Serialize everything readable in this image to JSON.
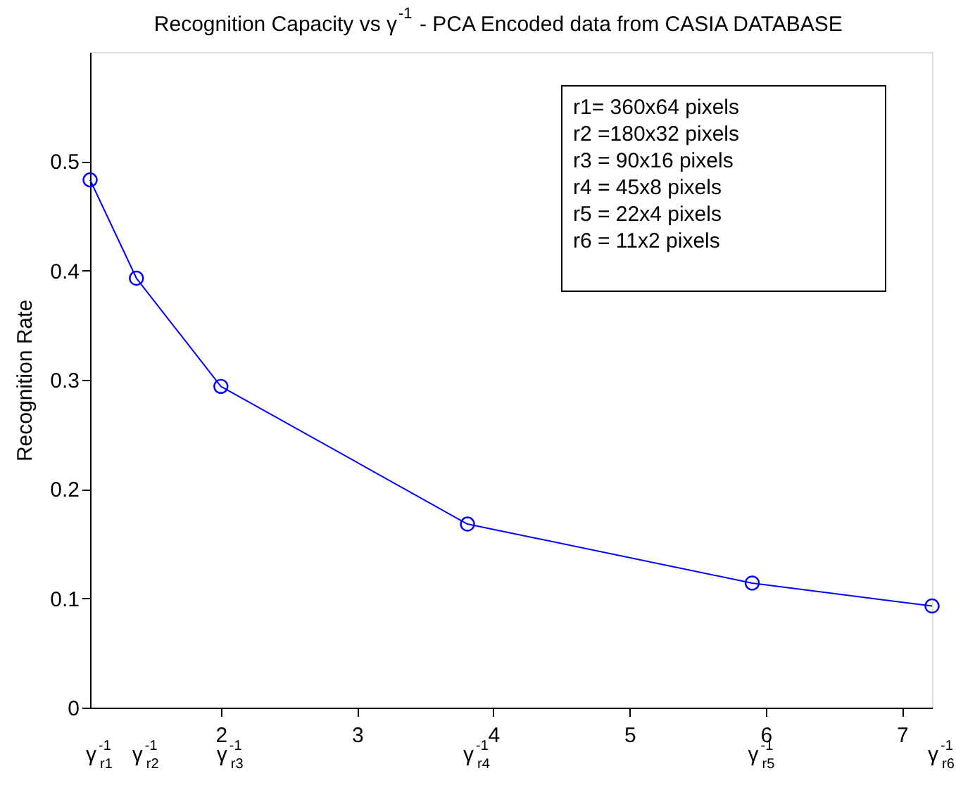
{
  "chart_data": {
    "type": "line",
    "title": "Recognition Capacity vs γ$^{-1}$  - PCA Encoded data from CASIA DATABASE",
    "ylabel": "Recognition Rate",
    "x": [
      1.04,
      1.38,
      2.0,
      3.81,
      5.9,
      7.22
    ],
    "series": [
      {
        "color": "#0000ff",
        "values": [
          0.483,
          0.393,
          0.294,
          0.168,
          0.114,
          0.093
        ]
      }
    ],
    "xlim": [
      1.04,
      7.22
    ],
    "xticks": [
      2,
      3,
      4,
      5,
      6,
      7
    ],
    "ylim": [
      0,
      0.6
    ],
    "yticks": [
      0,
      0.1,
      0.2,
      0.3,
      0.4,
      0.5
    ],
    "grid": false,
    "marker": "circle",
    "line_style": "solid",
    "annotations": [
      "γ$^{-1}$$_{r1}$",
      "γ$^{-1}$$_{r2}$",
      "γ$^{-1}$$_{r3}$",
      "γ$^{-1}$$_{r4}$",
      "γ$^{-1}$$_{r5}$",
      "γ$^{-1}$$_{r6}$",
      "r1= 360x64 pixels",
      "r2 =180x32 pixels",
      "r3 =  90x16 pixels",
      "r4 =  45x8   pixels",
      "r5 =  22x4   pixels",
      "r6 =  11x2   pixels"
    ]
  }
}
